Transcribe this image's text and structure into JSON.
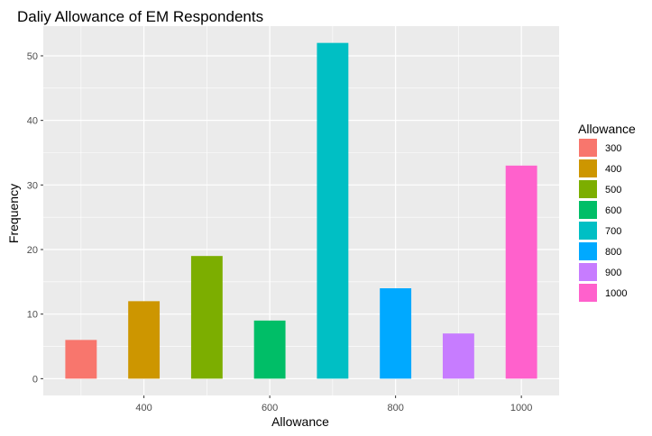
{
  "chart_data": {
    "type": "bar",
    "title": "Daliy Allowance of EM Respondents",
    "xlabel": "Allowance",
    "ylabel": "Frequency",
    "x": [
      300,
      400,
      500,
      600,
      700,
      800,
      900,
      1000
    ],
    "values": [
      6,
      12,
      19,
      9,
      52,
      14,
      7,
      33
    ],
    "colors": [
      "#F8766D",
      "#CD9600",
      "#7CAE00",
      "#00BE67",
      "#00BFC4",
      "#00A9FF",
      "#C77CFF",
      "#FF61CC"
    ],
    "xlim": [
      240,
      1060
    ],
    "ylim": [
      -2.6,
      54.6
    ],
    "x_ticks": [
      400,
      600,
      800,
      1000
    ],
    "y_ticks": [
      0,
      10,
      20,
      30,
      40,
      50
    ],
    "bar_width": 50,
    "grid": true,
    "panel_background": "#EBEBEB",
    "grid_color": "#FFFFFF",
    "legend": {
      "title": "Allowance",
      "position": "right",
      "labels": [
        "300",
        "400",
        "500",
        "600",
        "700",
        "800",
        "900",
        "1000"
      ]
    }
  }
}
